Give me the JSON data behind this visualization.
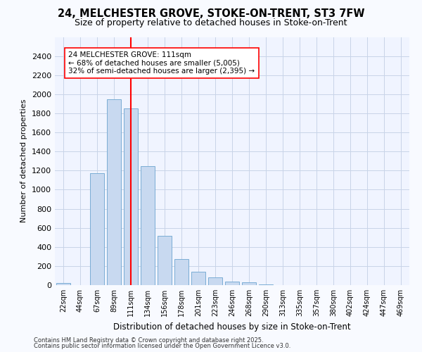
{
  "title1": "24, MELCHESTER GROVE, STOKE-ON-TRENT, ST3 7FW",
  "title2": "Size of property relative to detached houses in Stoke-on-Trent",
  "xlabel": "Distribution of detached houses by size in Stoke-on-Trent",
  "ylabel": "Number of detached properties",
  "categories": [
    "22sqm",
    "44sqm",
    "67sqm",
    "89sqm",
    "111sqm",
    "134sqm",
    "156sqm",
    "178sqm",
    "201sqm",
    "223sqm",
    "246sqm",
    "268sqm",
    "290sqm",
    "313sqm",
    "335sqm",
    "357sqm",
    "380sqm",
    "402sqm",
    "424sqm",
    "447sqm",
    "469sqm"
  ],
  "values": [
    20,
    0,
    1175,
    1950,
    1855,
    1250,
    520,
    270,
    140,
    80,
    40,
    30,
    5,
    3,
    2,
    2,
    1,
    1,
    1,
    1,
    1
  ],
  "bar_color": "#c8d9f0",
  "bar_edge_color": "#7aadd4",
  "red_line_index": 4,
  "annotation_line1": "24 MELCHESTER GROVE: 111sqm",
  "annotation_line2": "← 68% of detached houses are smaller (5,005)",
  "annotation_line3": "32% of semi-detached houses are larger (2,395) →",
  "ylim": [
    0,
    2600
  ],
  "yticks": [
    0,
    200,
    400,
    600,
    800,
    1000,
    1200,
    1400,
    1600,
    1800,
    2000,
    2200,
    2400
  ],
  "footnote1": "Contains HM Land Registry data © Crown copyright and database right 2025.",
  "footnote2": "Contains public sector information licensed under the Open Government Licence v3.0.",
  "plot_bg_color": "#f0f4ff",
  "fig_bg_color": "#f8faff",
  "grid_color": "#c8d4e8",
  "title_fontsize": 10.5,
  "subtitle_fontsize": 9
}
